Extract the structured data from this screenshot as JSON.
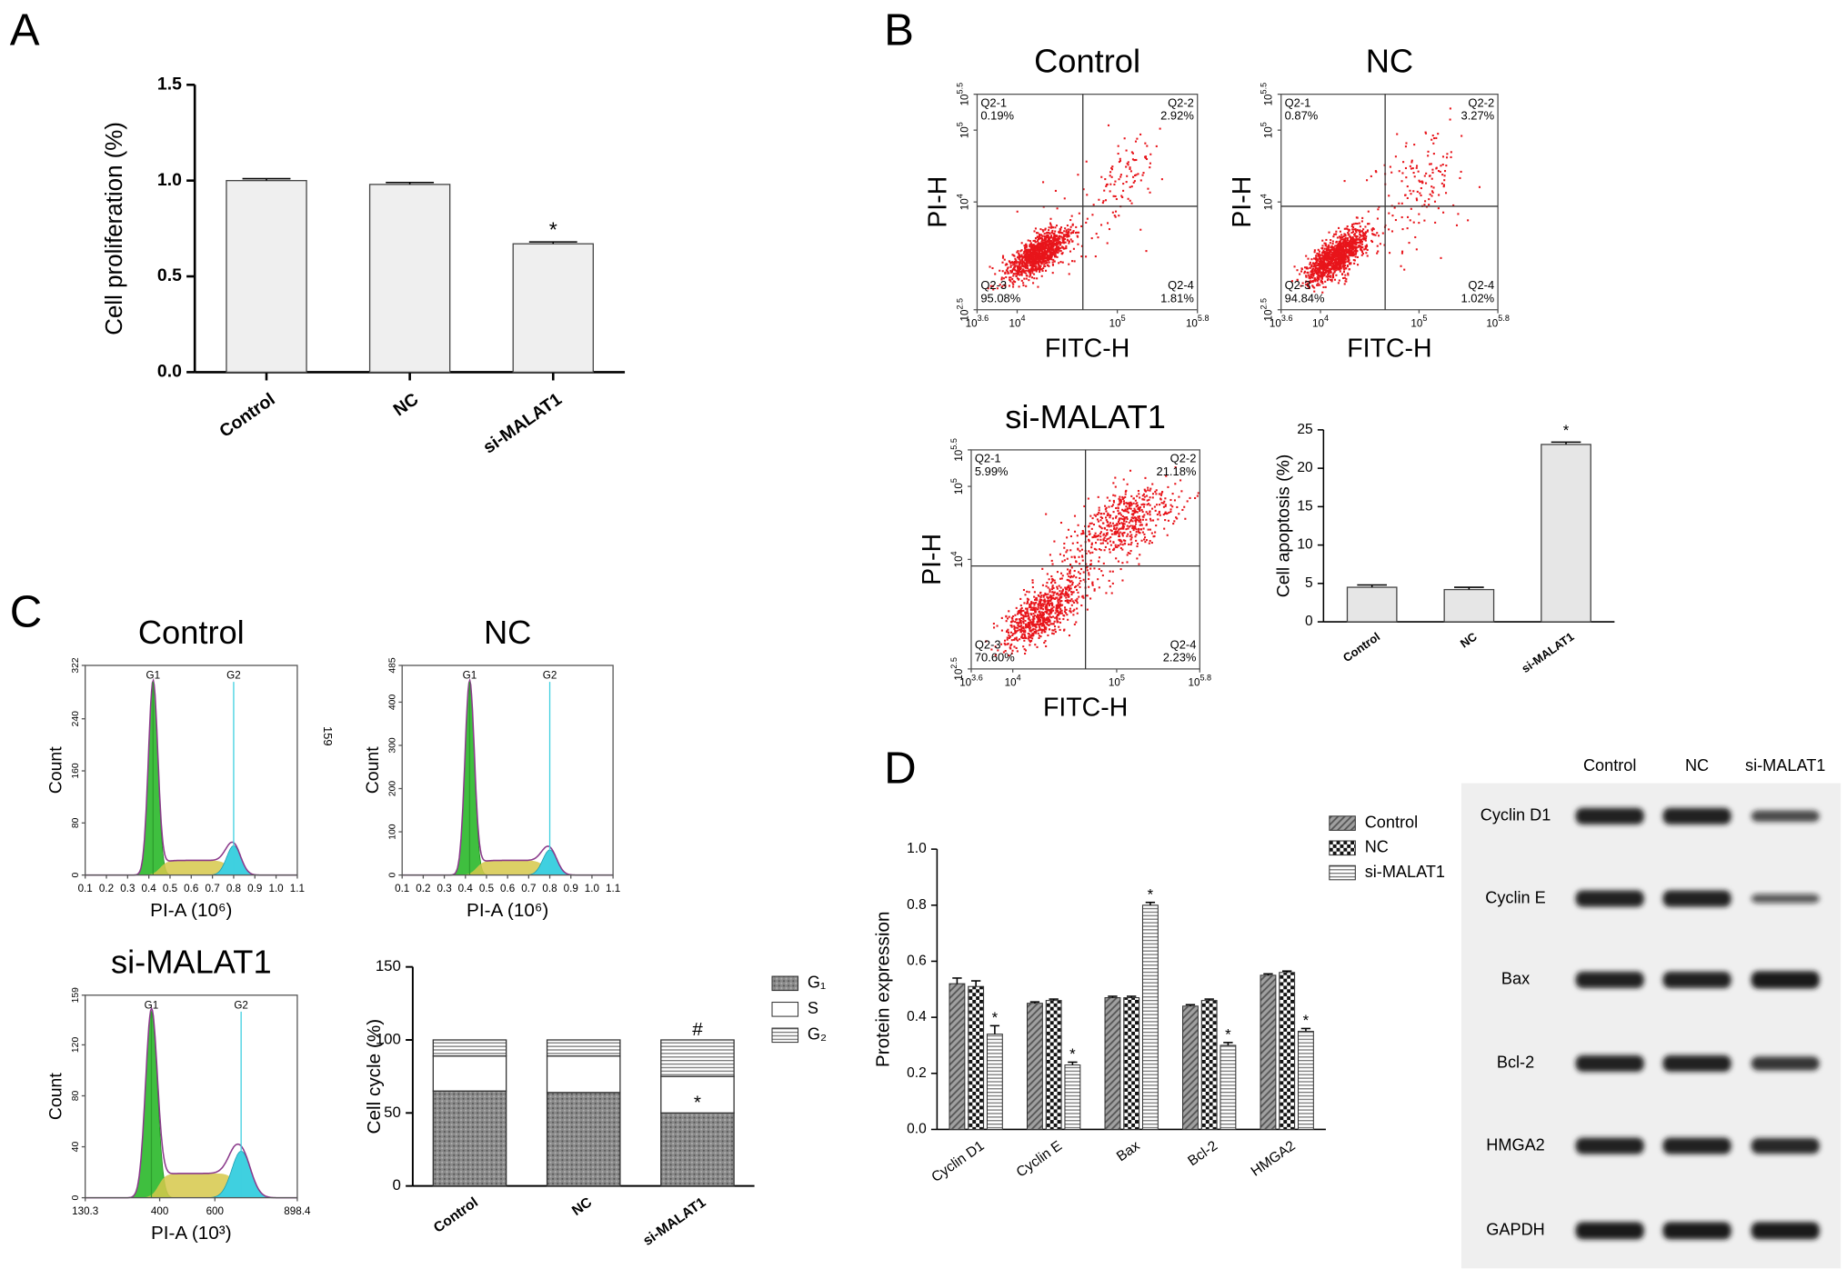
{
  "panel_labels": {
    "a": "A",
    "b": "B",
    "c": "C",
    "d": "D"
  },
  "chart_data": [
    {
      "type": "bar",
      "ylabel": "Cell proliferation (%)",
      "categories": [
        "Control",
        "NC",
        "si-MALAT1"
      ],
      "values": [
        1.0,
        0.98,
        0.67
      ],
      "errors": [
        0.01,
        0.01,
        0.01
      ],
      "color": "#efefef",
      "ylim": [
        0,
        1.5
      ],
      "yticks": [
        {
          "value": 0,
          "label": "0.0"
        },
        {
          "value": 0.5,
          "label": "0.5"
        },
        {
          "value": 1,
          "label": "1.0"
        },
        {
          "value": 1.5,
          "label": "1.5"
        }
      ],
      "annotations": [
        {
          "category": "si-MALAT1",
          "text": "*"
        }
      ]
    },
    {
      "type": "bar",
      "ylabel": "Cell apoptosis (%)",
      "categories": [
        "Control",
        "NC",
        "si-MALAT1"
      ],
      "values": [
        4.5,
        4.2,
        23.1
      ],
      "errors": [
        0.3,
        0.3,
        0.3
      ],
      "color": "#e6e6e6",
      "ylim": [
        0,
        25
      ],
      "yticks": [
        0,
        5,
        10,
        15,
        20,
        25
      ],
      "annotations": [
        {
          "category": "si-MALAT1",
          "text": "*"
        }
      ]
    },
    {
      "type": "stacked_bar",
      "ylabel": "Cell cycle (%)",
      "categories": [
        "Control",
        "NC",
        "si-MALAT1"
      ],
      "series": [
        {
          "name": "G₁",
          "color": "#8a8a8a",
          "pattern": "cross",
          "values": [
            65,
            64,
            50
          ]
        },
        {
          "name": "S",
          "color": "#ffffff",
          "values": [
            24,
            25,
            25
          ]
        },
        {
          "name": "G₂",
          "color": "#ffffff",
          "pattern": "hlines",
          "values": [
            11,
            11,
            25
          ]
        }
      ],
      "ylim": [
        0,
        150
      ],
      "yticks": [
        0,
        50,
        100,
        150
      ],
      "annotations": [
        {
          "category": "si-MALAT1",
          "series": "G₁",
          "text": "*"
        },
        {
          "category": "si-MALAT1",
          "series": "G₂",
          "text": "#"
        }
      ]
    },
    {
      "type": "grouped_bar",
      "ylabel": "Protein expression",
      "categories": [
        "Cyclin D1",
        "Cyclin E",
        "Bax",
        "Bcl-2",
        "HMGA2"
      ],
      "series": [
        {
          "name": "Control",
          "color": "#9a9a9a",
          "pattern": "hatch",
          "values": [
            0.52,
            0.45,
            0.47,
            0.44,
            0.55
          ],
          "errors": [
            0.02,
            0.005,
            0.005,
            0.005,
            0.005
          ]
        },
        {
          "name": "NC",
          "color": "#111111",
          "pattern": "check",
          "values": [
            0.51,
            0.46,
            0.47,
            0.46,
            0.56
          ],
          "errors": [
            0.02,
            0.005,
            0.005,
            0.005,
            0.005
          ]
        },
        {
          "name": "si-MALAT1",
          "color": "#ffffff",
          "pattern": "hlines",
          "values": [
            0.34,
            0.23,
            0.8,
            0.3,
            0.35
          ],
          "errors": [
            0.03,
            0.01,
            0.01,
            0.01,
            0.01
          ]
        }
      ],
      "ylim": [
        0,
        1
      ],
      "yticks": [
        {
          "value": 0,
          "label": "0.0"
        },
        {
          "value": 0.2,
          "label": "0.2"
        },
        {
          "value": 0.4,
          "label": "0.4"
        },
        {
          "value": 0.6,
          "label": "0.6"
        },
        {
          "value": 0.8,
          "label": "0.8"
        },
        {
          "value": 1,
          "label": "1.0"
        }
      ],
      "annotations": [
        {
          "category": "Cyclin D1",
          "series": "si-MALAT1",
          "text": "*"
        },
        {
          "category": "Cyclin E",
          "series": "si-MALAT1",
          "text": "*"
        },
        {
          "category": "Bax",
          "series": "si-MALAT1",
          "text": "*"
        },
        {
          "category": "Bcl-2",
          "series": "si-MALAT1",
          "text": "*"
        },
        {
          "category": "HMGA2",
          "series": "si-MALAT1",
          "text": "*"
        }
      ]
    }
  ],
  "flow_plots": [
    {
      "title": "Control",
      "xlabel": "FITC-H",
      "ylabel": "PI-H",
      "xlim": [
        3.6,
        5.8
      ],
      "ylim": [
        2.5,
        5.5
      ],
      "xticks": [
        {
          "value": 3.6,
          "base": "10",
          "exp": "3.6"
        },
        {
          "value": 4,
          "base": "10",
          "exp": "4"
        },
        {
          "value": 5,
          "base": "10",
          "exp": "5"
        },
        {
          "value": 5.8,
          "base": "10",
          "exp": "5.8"
        }
      ],
      "yticks": [
        {
          "value": 2.5,
          "base": "10",
          "exp": "2.5"
        },
        {
          "value": 4,
          "base": "10",
          "exp": "4"
        },
        {
          "value": 5,
          "base": "10",
          "exp": "5"
        },
        {
          "value": 5.5,
          "base": "10",
          "exp": "5.5"
        }
      ],
      "quadrants": [
        {
          "name": "Q2-1",
          "percent": "0.19%"
        },
        {
          "name": "Q2-2",
          "percent": "2.92%"
        },
        {
          "name": "Q2-3",
          "percent": "95.08%"
        },
        {
          "name": "Q2-4",
          "percent": "1.81%"
        }
      ]
    },
    {
      "title": "NC",
      "xlabel": "FITC-H",
      "ylabel": "PI-H",
      "xlim": [
        3.6,
        5.8
      ],
      "ylim": [
        2.5,
        5.5
      ],
      "xticks": [
        {
          "value": 3.6,
          "base": "10",
          "exp": "3.6"
        },
        {
          "value": 4,
          "base": "10",
          "exp": "4"
        },
        {
          "value": 5,
          "base": "10",
          "exp": "5"
        },
        {
          "value": 5.8,
          "base": "10",
          "exp": "5.8"
        }
      ],
      "yticks": [
        {
          "value": 2.5,
          "base": "10",
          "exp": "2.5"
        },
        {
          "value": 4,
          "base": "10",
          "exp": "4"
        },
        {
          "value": 5,
          "base": "10",
          "exp": "5"
        },
        {
          "value": 5.5,
          "base": "10",
          "exp": "5.5"
        }
      ],
      "quadrants": [
        {
          "name": "Q2-1",
          "percent": "0.87%"
        },
        {
          "name": "Q2-2",
          "percent": "3.27%"
        },
        {
          "name": "Q2-3",
          "percent": "94.84%"
        },
        {
          "name": "Q2-4",
          "percent": "1.02%"
        }
      ]
    },
    {
      "title": "si-MALAT1",
      "xlabel": "FITC-H",
      "ylabel": "PI-H",
      "xlim": [
        3.6,
        5.8
      ],
      "ylim": [
        2.5,
        5.5
      ],
      "xticks": [
        {
          "value": 3.6,
          "base": "10",
          "exp": "3.6"
        },
        {
          "value": 4,
          "base": "10",
          "exp": "4"
        },
        {
          "value": 5,
          "base": "10",
          "exp": "5"
        },
        {
          "value": 5.8,
          "base": "10",
          "exp": "5.8"
        }
      ],
      "yticks": [
        {
          "value": 2.5,
          "base": "10",
          "exp": "2.5"
        },
        {
          "value": 4,
          "base": "10",
          "exp": "4"
        },
        {
          "value": 5,
          "base": "10",
          "exp": "5"
        },
        {
          "value": 5.5,
          "base": "10",
          "exp": "5.5"
        }
      ],
      "quadrants": [
        {
          "name": "Q2-1",
          "percent": "5.99%"
        },
        {
          "name": "Q2-2",
          "percent": "21.18%"
        },
        {
          "name": "Q2-3",
          "percent": "70.60%"
        },
        {
          "name": "Q2-4",
          "percent": "2.23%"
        }
      ]
    }
  ],
  "histograms": [
    {
      "title": "Control",
      "xlabel": "PI-A (10⁶)",
      "ylabel": "Count",
      "xlim": [
        0.1,
        1.1
      ],
      "xticks": [
        0.1,
        0.2,
        0.3,
        0.4,
        0.5,
        0.6,
        0.7,
        0.8,
        0.9,
        {
          "value": 1,
          "label": "1.0"
        },
        1.1
      ],
      "ylim": [
        0,
        322
      ],
      "yticks": [
        0,
        80,
        160,
        240,
        322
      ],
      "peaks": [
        {
          "label": "G1",
          "x": 0.42
        },
        {
          "label": "G2",
          "x": 0.8
        }
      ]
    },
    {
      "title": "NC",
      "xlabel": "PI-A (10⁶)",
      "ylabel": "Count",
      "xlim": [
        0.1,
        1.1
      ],
      "xticks": [
        0.1,
        0.2,
        0.3,
        0.4,
        0.5,
        0.6,
        0.7,
        0.8,
        0.9,
        {
          "value": 1,
          "label": "1.0"
        },
        1.1
      ],
      "ylim": [
        0,
        485
      ],
      "yticks": [
        0,
        100,
        200,
        300,
        400,
        485
      ],
      "peaks": [
        {
          "label": "G1",
          "x": 0.42
        },
        {
          "label": "G2",
          "x": 0.8
        }
      ]
    },
    {
      "title": "si-MALAT1",
      "xlabel": "PI-A (10³)",
      "ylabel": "Count",
      "xlim": [
        130.3,
        898.4
      ],
      "xticks": [
        130.3,
        400,
        600,
        898.4
      ],
      "ylim": [
        0,
        159
      ],
      "yticks": [
        0,
        40,
        80,
        120,
        159
      ],
      "peaks": [
        {
          "label": "G1",
          "x": 370
        },
        {
          "label": "G2",
          "x": 695
        }
      ]
    }
  ],
  "stray_label": "159",
  "western_blot": {
    "columns": [
      "Control",
      "NC",
      "si-MALAT1"
    ],
    "rows": [
      "Cyclin D1",
      "Cyclin E",
      "Bax",
      "Bcl-2",
      "HMGA2",
      "GAPDH"
    ]
  }
}
